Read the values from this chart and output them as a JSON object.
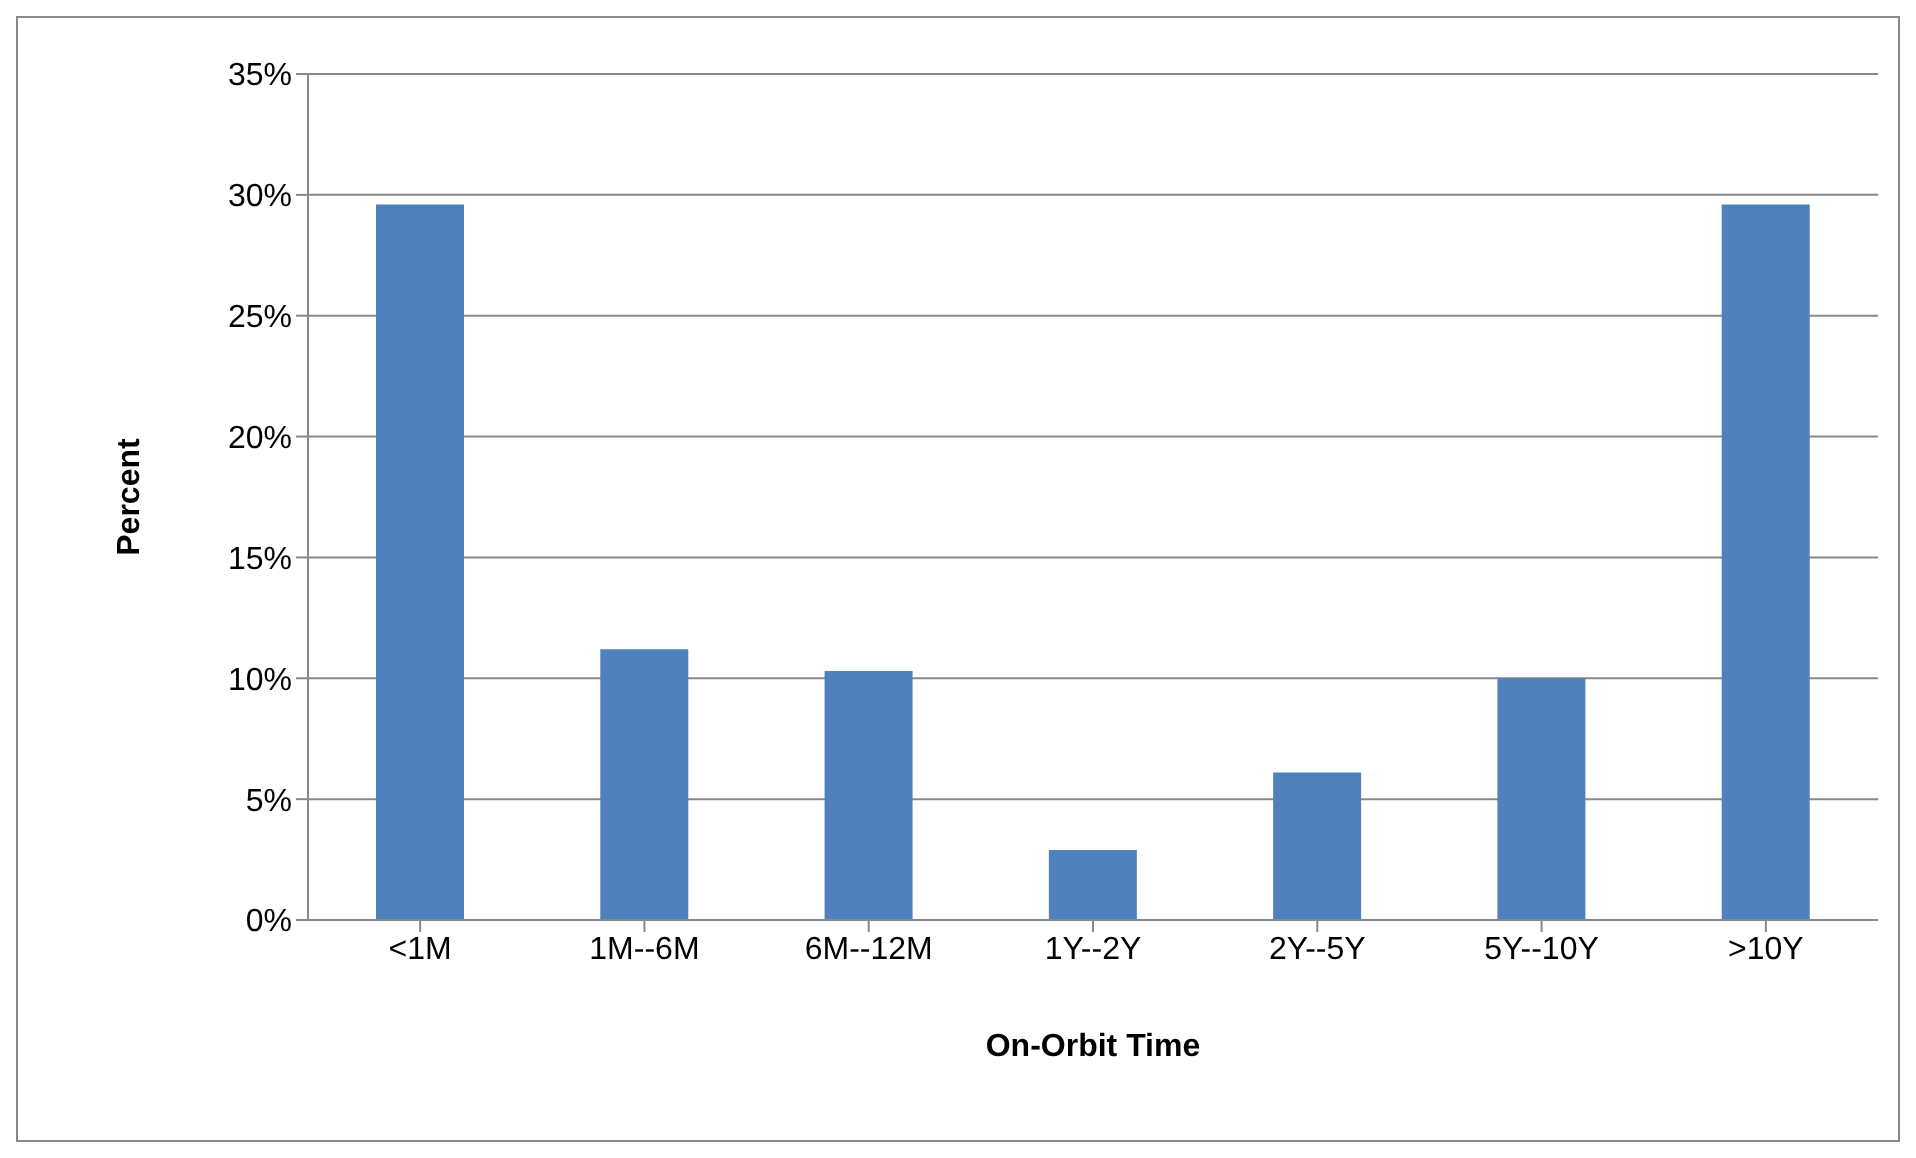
{
  "chart_data": {
    "type": "bar",
    "xlabel": "On-Orbit Time",
    "ylabel": "Percent",
    "categories": [
      "<1M",
      "1M--6M",
      "6M--12M",
      "1Y--2Y",
      "2Y--5Y",
      "5Y--10Y",
      ">10Y"
    ],
    "values": [
      29.6,
      11.2,
      10.3,
      2.9,
      6.1,
      10.0,
      29.6
    ],
    "color": "#4f81bd",
    "ylim": [
      0,
      35
    ],
    "yticks": [
      {
        "value": 0,
        "label": "0%"
      },
      {
        "value": 5,
        "label": "5%"
      },
      {
        "value": 10,
        "label": "10%"
      },
      {
        "value": 15,
        "label": "15%"
      },
      {
        "value": 20,
        "label": "20%"
      },
      {
        "value": 25,
        "label": "25%"
      },
      {
        "value": 30,
        "label": "30%"
      },
      {
        "value": 35,
        "label": "35%"
      }
    ],
    "grid": "y",
    "legend": false
  }
}
